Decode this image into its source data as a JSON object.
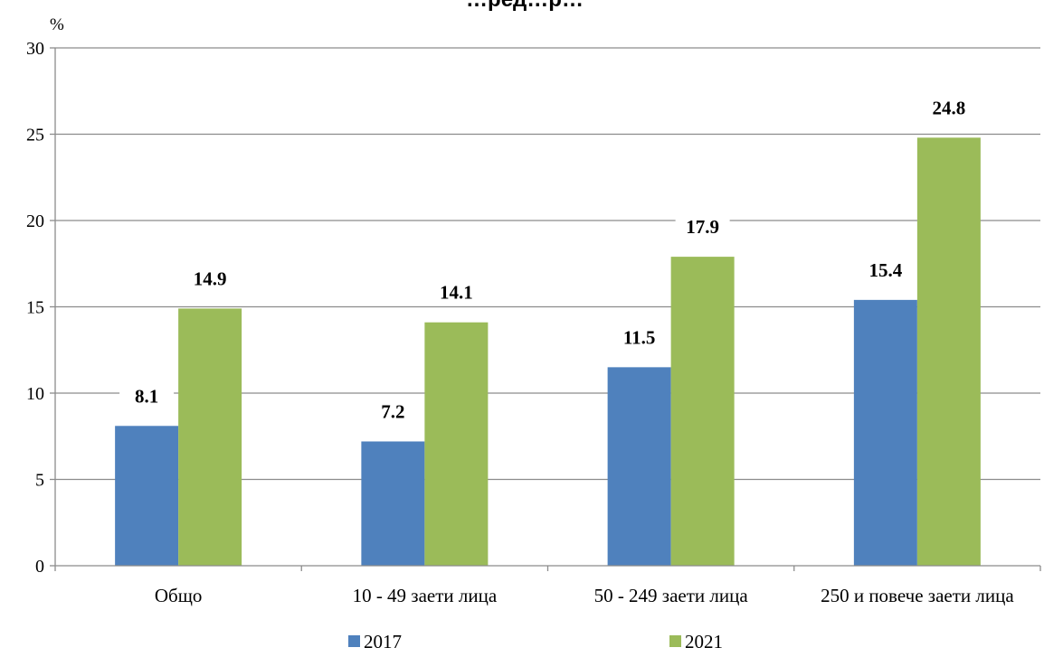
{
  "chart_data": {
    "type": "bar",
    "title": "…ред…р…",
    "ylabel": "%",
    "categories": [
      "Общо",
      "10 - 49 заети лица",
      "50 - 249 заети лица",
      "250 и повече заети лица"
    ],
    "series": [
      {
        "name": "2017",
        "values": [
          8.1,
          7.2,
          11.5,
          15.4
        ],
        "color": "#4f81bd"
      },
      {
        "name": "2021",
        "values": [
          14.9,
          14.1,
          17.9,
          24.8
        ],
        "color": "#9bbb59"
      }
    ],
    "ylim": [
      0,
      30
    ],
    "yticks": [
      0,
      5,
      10,
      15,
      20,
      25,
      30
    ],
    "grid": true,
    "legend": "bottom"
  }
}
